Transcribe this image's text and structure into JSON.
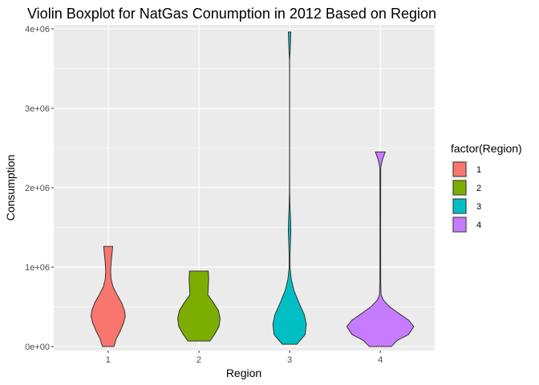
{
  "chart_data": {
    "type": "violin",
    "title": "Violin Boxplot for NatGas Conumption in 2012 Based on Region",
    "xlabel": "Region",
    "ylabel": "Consumption",
    "categories": [
      "1",
      "2",
      "3",
      "4"
    ],
    "ylim": [
      -50000,
      4050000
    ],
    "yticks": [
      {
        "value": 0,
        "label": "0e+00"
      },
      {
        "value": 1000000,
        "label": "1e+06"
      },
      {
        "value": 2000000,
        "label": "2e+06"
      },
      {
        "value": 3000000,
        "label": "3e+06"
      },
      {
        "value": 4000000,
        "label": "4e+06"
      }
    ],
    "legend": {
      "title": "factor(Region)",
      "position": "right",
      "entries": [
        {
          "label": "1",
          "color": "#F8766D"
        },
        {
          "label": "2",
          "color": "#7CAE00"
        },
        {
          "label": "3",
          "color": "#00BFC4"
        },
        {
          "label": "4",
          "color": "#C77CFF"
        }
      ]
    },
    "series": [
      {
        "name": "1",
        "color": "#F8766D",
        "min": 0,
        "max": 1260000,
        "profile": [
          [
            0,
            0.14
          ],
          [
            100000,
            0.2
          ],
          [
            200000,
            0.3
          ],
          [
            300000,
            0.38
          ],
          [
            380000,
            0.42
          ],
          [
            450000,
            0.4
          ],
          [
            550000,
            0.33
          ],
          [
            650000,
            0.22
          ],
          [
            750000,
            0.12
          ],
          [
            850000,
            0.07
          ],
          [
            950000,
            0.06
          ],
          [
            1050000,
            0.07
          ],
          [
            1150000,
            0.09
          ],
          [
            1260000,
            0.11
          ]
        ]
      },
      {
        "name": "2",
        "color": "#7CAE00",
        "min": 70000,
        "max": 950000,
        "profile": [
          [
            70000,
            0.27
          ],
          [
            150000,
            0.38
          ],
          [
            250000,
            0.49
          ],
          [
            350000,
            0.52
          ],
          [
            450000,
            0.48
          ],
          [
            550000,
            0.36
          ],
          [
            650000,
            0.22
          ],
          [
            750000,
            0.23
          ],
          [
            850000,
            0.24
          ],
          [
            950000,
            0.23
          ]
        ]
      },
      {
        "name": "3",
        "color": "#00BFC4",
        "min": 30000,
        "max": 3960000,
        "profile": [
          [
            30000,
            0.18
          ],
          [
            150000,
            0.38
          ],
          [
            280000,
            0.41
          ],
          [
            400000,
            0.36
          ],
          [
            550000,
            0.23
          ],
          [
            700000,
            0.11
          ],
          [
            850000,
            0.04
          ],
          [
            1000000,
            0.01
          ],
          [
            1150000,
            0.01
          ],
          [
            1300000,
            0.02
          ],
          [
            1450000,
            0.03
          ],
          [
            1600000,
            0.025
          ],
          [
            1750000,
            0.01
          ],
          [
            1950000,
            0.003
          ],
          [
            2500000,
            0.001
          ],
          [
            3200000,
            0.001
          ],
          [
            3600000,
            0.002
          ],
          [
            3800000,
            0.02
          ],
          [
            3960000,
            0.03
          ]
        ]
      },
      {
        "name": "4",
        "color": "#C77CFF",
        "min": 0,
        "max": 2450000,
        "profile": [
          [
            0,
            0.27
          ],
          [
            80000,
            0.42
          ],
          [
            150000,
            0.69
          ],
          [
            250000,
            0.82
          ],
          [
            330000,
            0.7
          ],
          [
            400000,
            0.5
          ],
          [
            500000,
            0.23
          ],
          [
            580000,
            0.08
          ],
          [
            650000,
            0.02
          ],
          [
            800000,
            0.01
          ],
          [
            1500000,
            0.008
          ],
          [
            2250000,
            0.01
          ],
          [
            2350000,
            0.05
          ],
          [
            2450000,
            0.12
          ]
        ]
      }
    ]
  }
}
